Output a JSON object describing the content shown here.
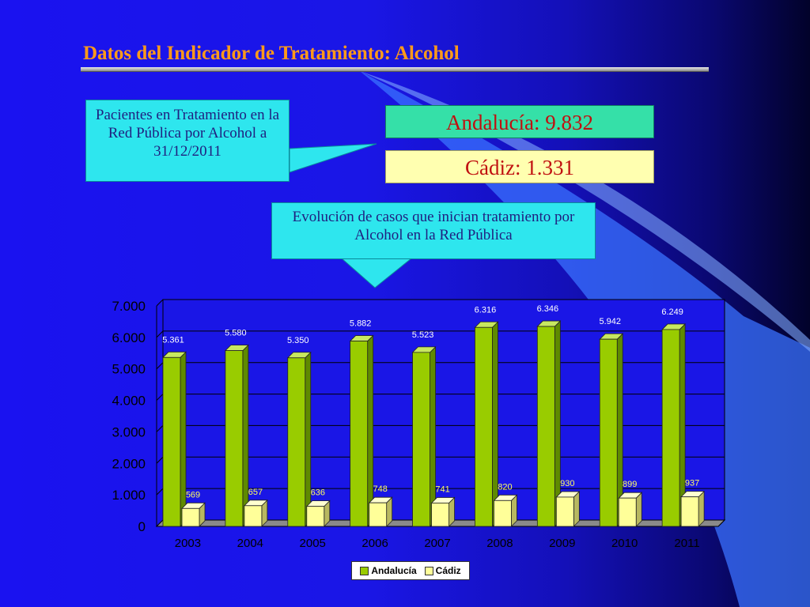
{
  "slide": {
    "title": "Datos del Indicador de Tratamiento: Alcohol",
    "callout_patients": "Pacientes en Tratamiento en la Red Pública por Alcohol a 31/12/2011",
    "stat_andalucia": "Andalucía:  9.832",
    "stat_cadiz": "Cádiz: 1.331",
    "callout_evolution": "Evolución de casos que inician tratamiento por Alcohol en la Red Pública",
    "colors": {
      "andalucia": "#99cc00",
      "cadiz": "#ffff99",
      "title": "#ff9a1a"
    }
  },
  "chart_data": {
    "type": "bar",
    "title": "",
    "xlabel": "",
    "ylabel": "",
    "categories": [
      "2003",
      "2004",
      "2005",
      "2006",
      "2007",
      "2008",
      "2009",
      "2010",
      "2011"
    ],
    "series": [
      {
        "name": "Andalucía",
        "values": [
          5361,
          5580,
          5350,
          5882,
          5523,
          6316,
          6346,
          5942,
          6249
        ],
        "labels": [
          "5.361",
          "5.580",
          "5.350",
          "5.882",
          "5.523",
          "6.316",
          "6.346",
          "5.942",
          "6.249"
        ]
      },
      {
        "name": "Cádiz",
        "values": [
          569,
          657,
          636,
          748,
          741,
          820,
          930,
          899,
          937
        ],
        "labels": [
          "569",
          "657",
          "636",
          "748",
          "741",
          "820",
          "930",
          "899",
          "937"
        ]
      }
    ],
    "ylim": [
      0,
      7000
    ],
    "yticks": [
      0,
      1000,
      2000,
      3000,
      4000,
      5000,
      6000,
      7000
    ],
    "ytick_labels": [
      "0",
      "1.000",
      "2.000",
      "3.000",
      "4.000",
      "5.000",
      "6.000",
      "7.000"
    ],
    "grid": true,
    "legend_position": "bottom"
  }
}
